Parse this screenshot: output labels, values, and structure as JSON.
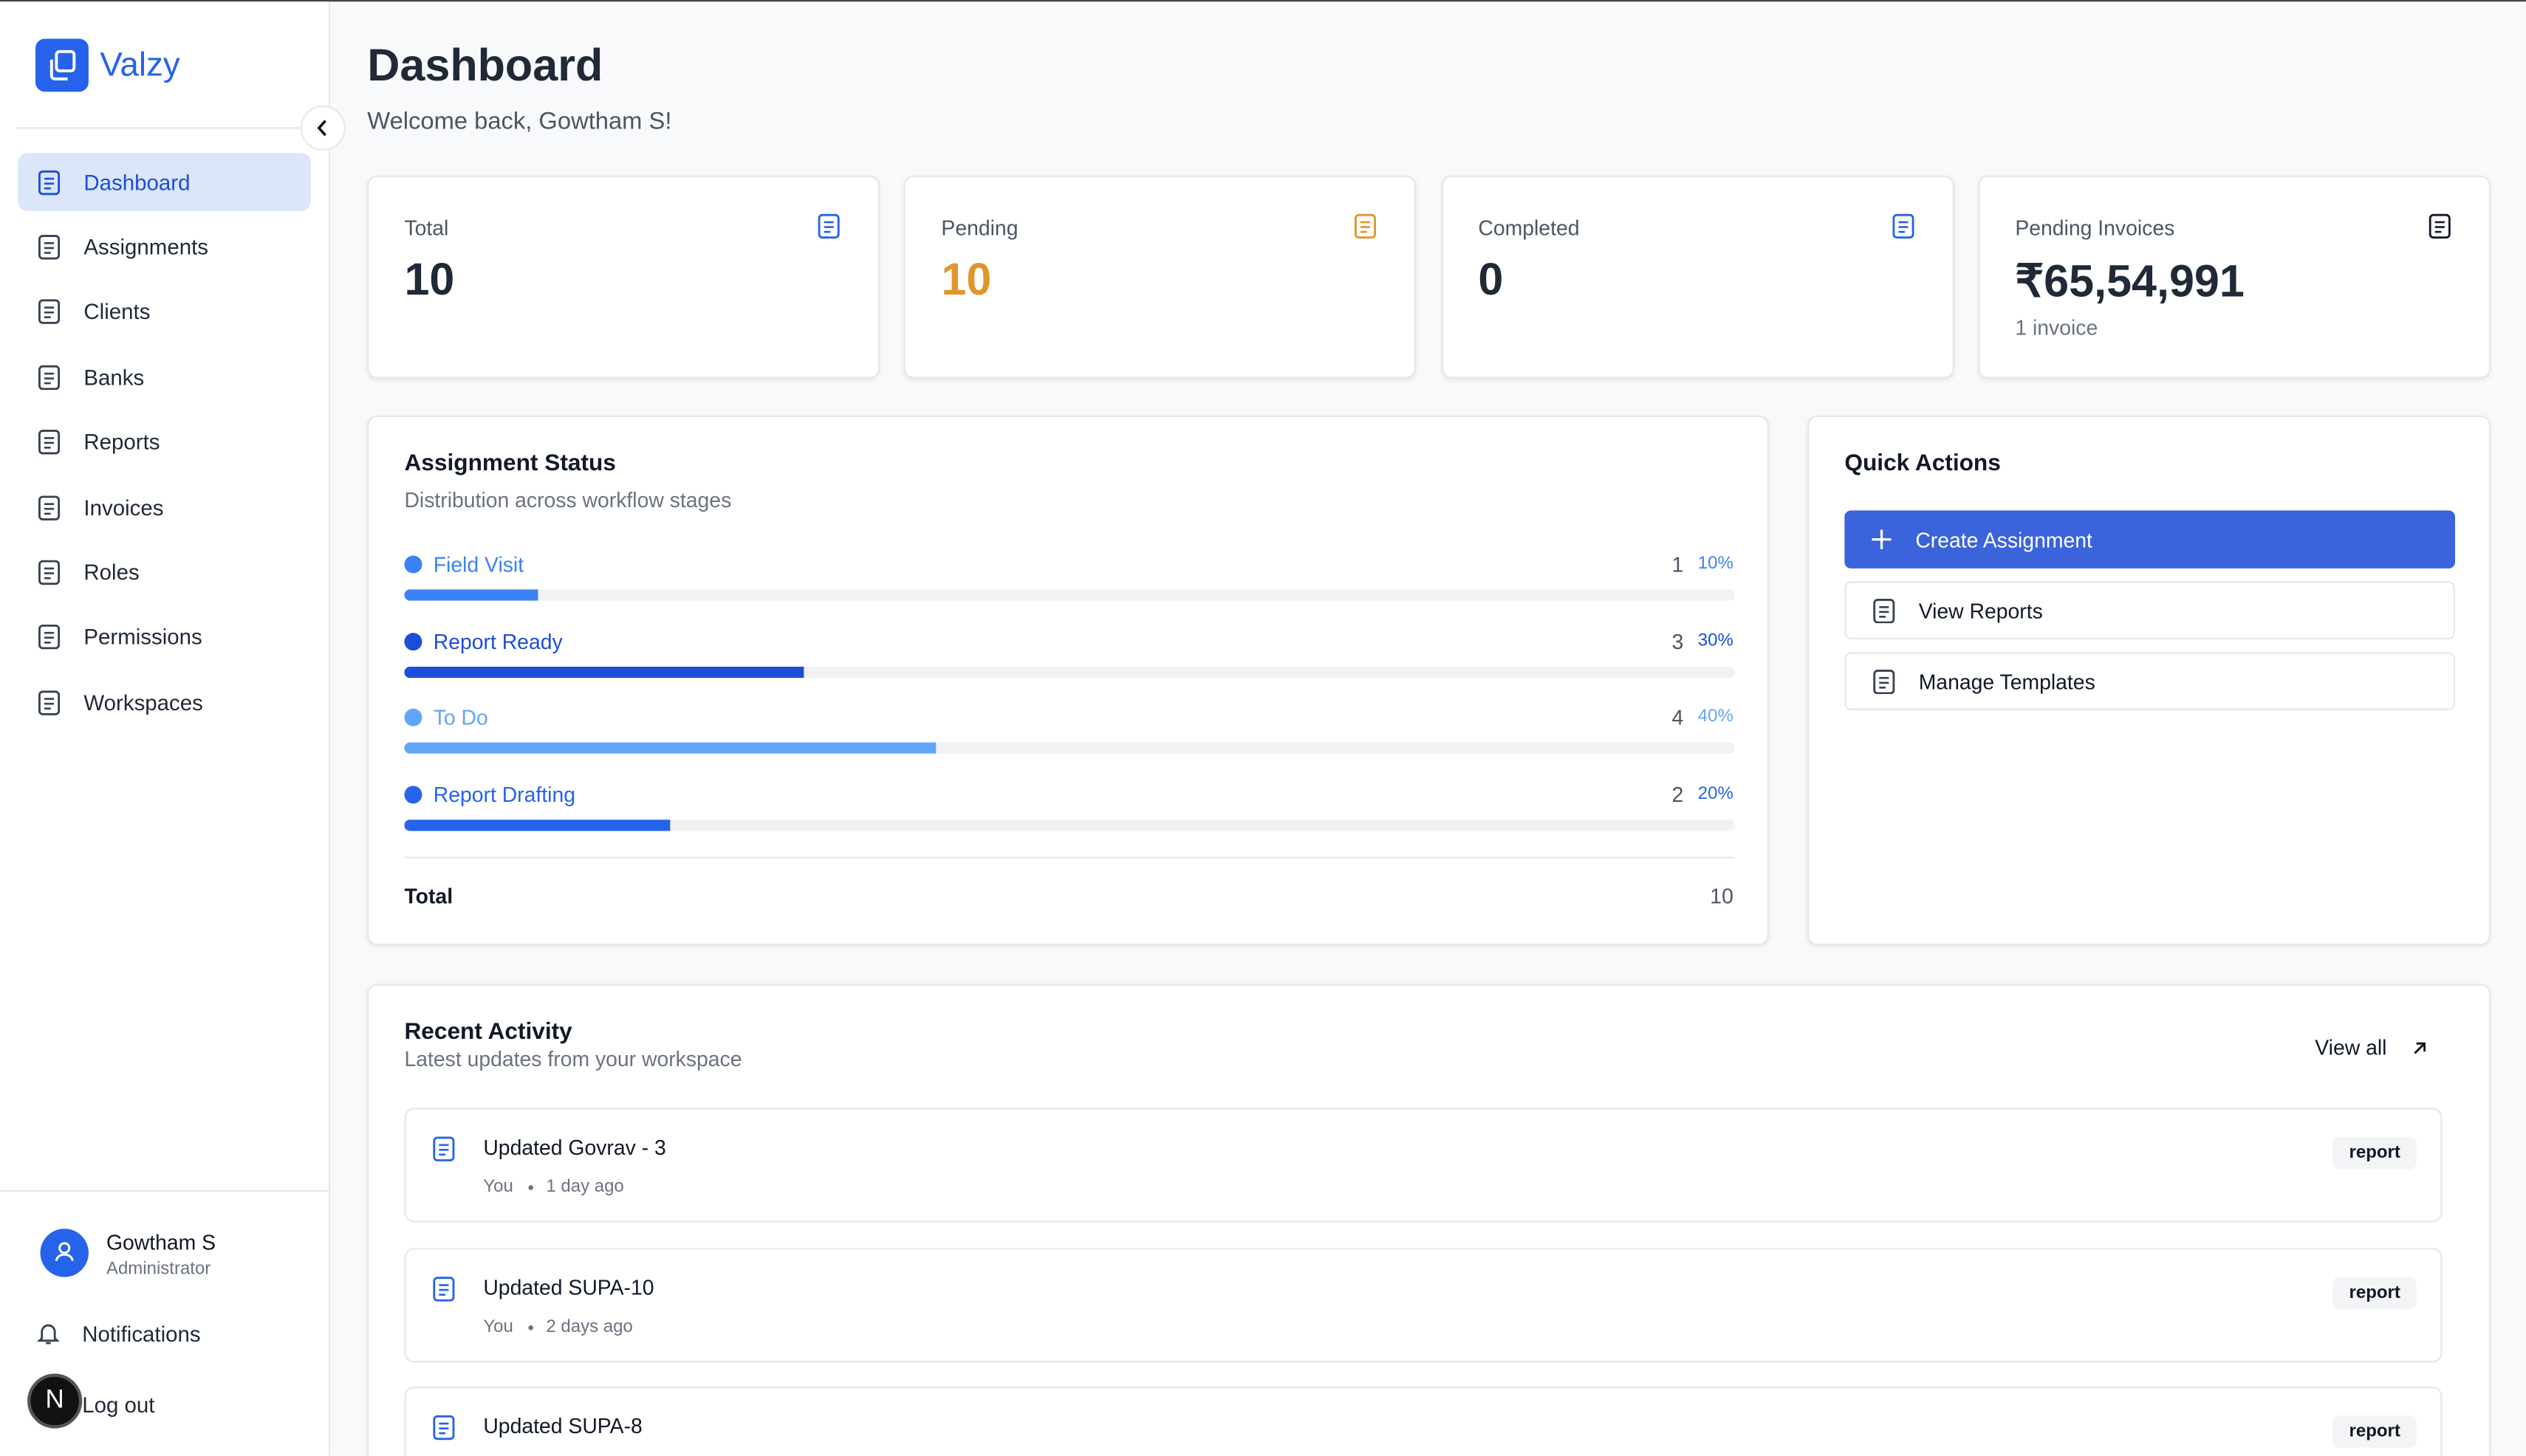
{
  "sidebar": {
    "brand": "Valzy",
    "nav": [
      "Dashboard",
      "Assignments",
      "Clients",
      "Banks",
      "Reports",
      "Invoices",
      "Roles",
      "Permissions",
      "Workspaces"
    ],
    "user": {
      "name": "Gowtham S",
      "role": "Administrator"
    },
    "notifications": "Notifications",
    "logout": "Log out",
    "dev_badge": "N"
  },
  "header": {
    "title": "Dashboard",
    "subtitle": "Welcome back, Gowtham S!"
  },
  "stats": [
    {
      "label": "Total",
      "value": 10
    },
    {
      "label": "Pending",
      "value": 10
    },
    {
      "label": "Completed",
      "value": 0
    },
    {
      "label": "Pending Invoices",
      "value": "₹65,54,991",
      "note": "1 invoice"
    }
  ],
  "status": {
    "title": "Assignment Status",
    "subtitle": "Distribution across workflow stages",
    "stages": [
      {
        "name": "Field Visit",
        "count": 1,
        "percent": 10,
        "percent_label": "10%",
        "color": "#3b82f6"
      },
      {
        "name": "Report Ready",
        "count": 3,
        "percent": 30,
        "percent_label": "30%",
        "color": "#1d4ed8"
      },
      {
        "name": "To Do",
        "count": 4,
        "percent": 40,
        "percent_label": "40%",
        "color": "#60a5fa"
      },
      {
        "name": "Report Drafting",
        "count": 2,
        "percent": 20,
        "percent_label": "20%",
        "color": "#2563eb"
      }
    ],
    "total_label": "Total",
    "total": 10
  },
  "quick_actions": {
    "title": "Quick Actions",
    "actions": [
      "Create Assignment",
      "View Reports",
      "Manage Templates"
    ]
  },
  "activity": {
    "title": "Recent Activity",
    "subtitle": "Latest updates from your workspace",
    "view_all": "View all",
    "items": [
      {
        "title": "Updated Govrav - 3",
        "user": "You",
        "time": "1 day ago",
        "tag": "report"
      },
      {
        "title": "Updated SUPA-10",
        "user": "You",
        "time": "2 days ago",
        "tag": "report"
      },
      {
        "title": "Updated SUPA-8",
        "tag": "report"
      }
    ]
  }
}
